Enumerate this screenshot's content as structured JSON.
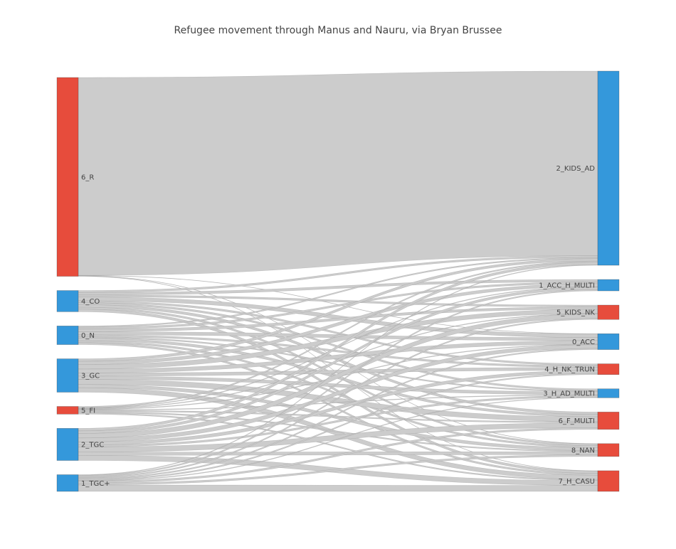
{
  "chart_data": {
    "type": "sankey",
    "title": "Refugee movement through Manus and Nauru, via Bryan Brussee",
    "colors": {
      "red": "#e74c3c",
      "blue": "#3498db",
      "link": "#cccccc",
      "link_line": "#777777"
    },
    "sources": [
      {
        "label": "6_R",
        "color": "red"
      },
      {
        "label": "4_CO",
        "color": "blue"
      },
      {
        "label": "0_N",
        "color": "blue"
      },
      {
        "label": "3_GC",
        "color": "blue"
      },
      {
        "label": "5_FI",
        "color": "red"
      },
      {
        "label": "2_TGC",
        "color": "blue"
      },
      {
        "label": "1_TGC+",
        "color": "blue"
      }
    ],
    "targets": [
      {
        "label": "2_KIDS_AD",
        "color": "blue"
      },
      {
        "label": "1_ACC_H_MULTI",
        "color": "blue"
      },
      {
        "label": "5_KIDS_NK",
        "color": "red"
      },
      {
        "label": "0_ACC",
        "color": "blue"
      },
      {
        "label": "4_H_NK_TRUN",
        "color": "red"
      },
      {
        "label": "3_H_AD_MULTI",
        "color": "blue"
      },
      {
        "label": "6_F_MULTI",
        "color": "red"
      },
      {
        "label": "8_NAN",
        "color": "red"
      },
      {
        "label": "7_H_CASU",
        "color": "red"
      }
    ],
    "links": [
      {
        "source": "6_R",
        "target": "2_KIDS_AD",
        "value": 308
      },
      {
        "source": "6_R",
        "target": "0_ACC",
        "value": 0.5
      },
      {
        "source": "6_R",
        "target": "8_NAN",
        "value": 0.5
      },
      {
        "source": "6_R",
        "target": "7_H_CASU",
        "value": 0.5
      },
      {
        "source": "4_CO",
        "target": "2_KIDS_AD",
        "value": 3
      },
      {
        "source": "4_CO",
        "target": "1_ACC_H_MULTI",
        "value": 4
      },
      {
        "source": "4_CO",
        "target": "5_KIDS_NK",
        "value": 3
      },
      {
        "source": "4_CO",
        "target": "0_ACC",
        "value": 6
      },
      {
        "source": "4_CO",
        "target": "4_H_NK_TRUN",
        "value": 3
      },
      {
        "source": "4_CO",
        "target": "3_H_AD_MULTI",
        "value": 3
      },
      {
        "source": "4_CO",
        "target": "6_F_MULTI",
        "value": 4
      },
      {
        "source": "4_CO",
        "target": "8_NAN",
        "value": 3
      },
      {
        "source": "4_CO",
        "target": "7_H_CASU",
        "value": 4
      },
      {
        "source": "0_N",
        "target": "2_KIDS_AD",
        "value": 2
      },
      {
        "source": "0_N",
        "target": "1_ACC_H_MULTI",
        "value": 3
      },
      {
        "source": "0_N",
        "target": "5_KIDS_NK",
        "value": 4
      },
      {
        "source": "0_N",
        "target": "0_ACC",
        "value": 5
      },
      {
        "source": "0_N",
        "target": "4_H_NK_TRUN",
        "value": 3
      },
      {
        "source": "0_N",
        "target": "3_H_AD_MULTI",
        "value": 2
      },
      {
        "source": "0_N",
        "target": "6_F_MULTI",
        "value": 4
      },
      {
        "source": "0_N",
        "target": "8_NAN",
        "value": 3
      },
      {
        "source": "0_N",
        "target": "7_H_CASU",
        "value": 3
      },
      {
        "source": "3_GC",
        "target": "2_KIDS_AD",
        "value": 4
      },
      {
        "source": "3_GC",
        "target": "1_ACC_H_MULTI",
        "value": 5
      },
      {
        "source": "3_GC",
        "target": "5_KIDS_NK",
        "value": 7
      },
      {
        "source": "3_GC",
        "target": "0_ACC",
        "value": 6
      },
      {
        "source": "3_GC",
        "target": "4_H_NK_TRUN",
        "value": 5
      },
      {
        "source": "3_GC",
        "target": "3_H_AD_MULTI",
        "value": 5
      },
      {
        "source": "3_GC",
        "target": "6_F_MULTI",
        "value": 8
      },
      {
        "source": "3_GC",
        "target": "8_NAN",
        "value": 5
      },
      {
        "source": "3_GC",
        "target": "7_H_CASU",
        "value": 7
      },
      {
        "source": "5_FI",
        "target": "2_KIDS_AD",
        "value": 2
      },
      {
        "source": "5_FI",
        "target": "1_ACC_H_MULTI",
        "value": 1
      },
      {
        "source": "5_FI",
        "target": "5_KIDS_NK",
        "value": 1
      },
      {
        "source": "5_FI",
        "target": "0_ACC",
        "value": 1
      },
      {
        "source": "5_FI",
        "target": "3_H_AD_MULTI",
        "value": 1
      },
      {
        "source": "5_FI",
        "target": "6_F_MULTI",
        "value": 2
      },
      {
        "source": "5_FI",
        "target": "8_NAN",
        "value": 2
      },
      {
        "source": "5_FI",
        "target": "7_H_CASU",
        "value": 2
      },
      {
        "source": "2_TGC",
        "target": "2_KIDS_AD",
        "value": 4
      },
      {
        "source": "2_TGC",
        "target": "1_ACC_H_MULTI",
        "value": 4
      },
      {
        "source": "2_TGC",
        "target": "5_KIDS_NK",
        "value": 7
      },
      {
        "source": "2_TGC",
        "target": "0_ACC",
        "value": 6
      },
      {
        "source": "2_TGC",
        "target": "4_H_NK_TRUN",
        "value": 5
      },
      {
        "source": "2_TGC",
        "target": "3_H_AD_MULTI",
        "value": 3
      },
      {
        "source": "2_TGC",
        "target": "6_F_MULTI",
        "value": 8
      },
      {
        "source": "2_TGC",
        "target": "8_NAN",
        "value": 5
      },
      {
        "source": "2_TGC",
        "target": "7_H_CASU",
        "value": 8
      },
      {
        "source": "1_TGC+",
        "target": "2_KIDS_AD",
        "value": 1
      },
      {
        "source": "1_TGC+",
        "target": "1_ACC_H_MULTI",
        "value": 2
      },
      {
        "source": "1_TGC+",
        "target": "5_KIDS_NK",
        "value": 2
      },
      {
        "source": "1_TGC+",
        "target": "0_ACC",
        "value": 2
      },
      {
        "source": "1_TGC+",
        "target": "4_H_NK_TRUN",
        "value": 2
      },
      {
        "source": "1_TGC+",
        "target": "3_H_AD_MULTI",
        "value": 1
      },
      {
        "source": "1_TGC+",
        "target": "6_F_MULTI",
        "value": 3
      },
      {
        "source": "1_TGC+",
        "target": "8_NAN",
        "value": 3
      },
      {
        "source": "1_TGC+",
        "target": "7_H_CASU",
        "value": 10
      }
    ]
  }
}
